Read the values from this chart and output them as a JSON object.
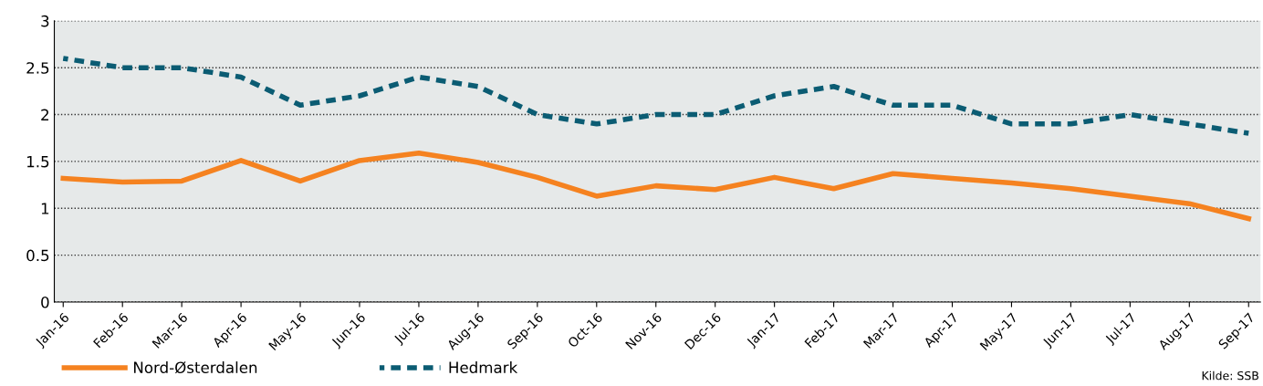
{
  "chart_data": {
    "type": "line",
    "categories": [
      "Jan-16",
      "Feb-16",
      "Mar-16",
      "Apr-16",
      "May-16",
      "Jun-16",
      "Jul-16",
      "Aug-16",
      "Sep-16",
      "Oct-16",
      "Nov-16",
      "Dec-16",
      "Jan-17",
      "Feb-17",
      "Mar-17",
      "Apr-17",
      "May-17",
      "Jun-17",
      "Jul-17",
      "Aug-17",
      "Sep-17"
    ],
    "series": [
      {
        "name": "Nord-Østerdalen",
        "color": "#f58220",
        "line_style": "solid",
        "values": [
          1.32,
          1.28,
          1.29,
          1.51,
          1.29,
          1.51,
          1.59,
          1.49,
          1.33,
          1.13,
          1.24,
          1.2,
          1.33,
          1.21,
          1.37,
          1.32,
          1.27,
          1.21,
          1.13,
          1.05,
          0.89
        ]
      },
      {
        "name": "Hedmark",
        "color": "#0b5c73",
        "line_style": "dashed",
        "values": [
          2.6,
          2.5,
          2.5,
          2.4,
          2.1,
          2.2,
          2.4,
          2.3,
          2.0,
          1.9,
          2.0,
          2.0,
          2.2,
          2.3,
          2.1,
          2.1,
          1.9,
          1.9,
          2.0,
          1.9,
          1.8
        ]
      }
    ],
    "ylim": [
      0,
      3
    ],
    "yticks": [
      0,
      0.5,
      1,
      1.5,
      2,
      2.5,
      3
    ],
    "grid": "y",
    "legend": "bottom",
    "marker": "none",
    "annotations": [
      "Kilde: SSB"
    ]
  }
}
